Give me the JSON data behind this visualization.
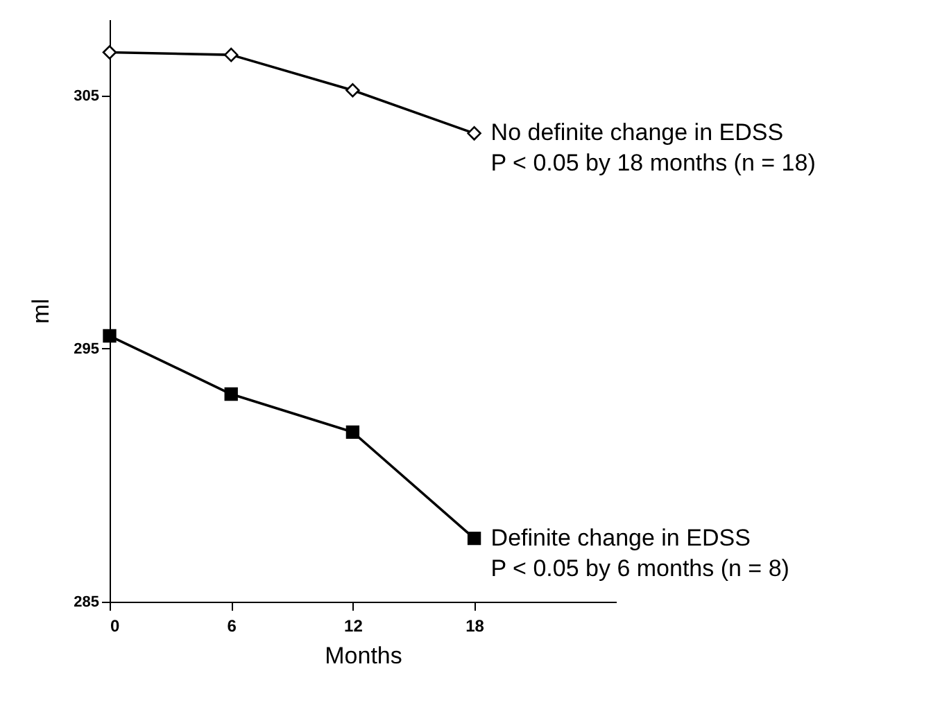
{
  "chart_data": {
    "type": "line",
    "xlabel": "Months",
    "ylabel": "ml",
    "x": [
      0,
      6,
      12,
      18
    ],
    "series": [
      {
        "name": "No definite change in EDSS",
        "color": "#000000",
        "marker": "diamond",
        "values": [
          306.7,
          306.6,
          305.2,
          303.5
        ]
      },
      {
        "name": "Definite change in EDSS",
        "color": "#000000",
        "marker": "square",
        "values": [
          295.5,
          293.2,
          291.7,
          287.5
        ]
      }
    ],
    "annotations": [
      {
        "text": "P < 0.05 by 18 months (n = 18)",
        "x": 18,
        "y": 303.5
      },
      {
        "text": "P < 0.05 by 6 months (n = 8)",
        "x": 18,
        "y": 287.5
      }
    ],
    "xlim": [
      0,
      25
    ],
    "xticks": [
      0,
      6,
      12,
      18
    ],
    "ylim": [
      285,
      308
    ],
    "yticks": [
      285,
      295,
      305
    ],
    "grid": false,
    "line_style": "solid"
  }
}
